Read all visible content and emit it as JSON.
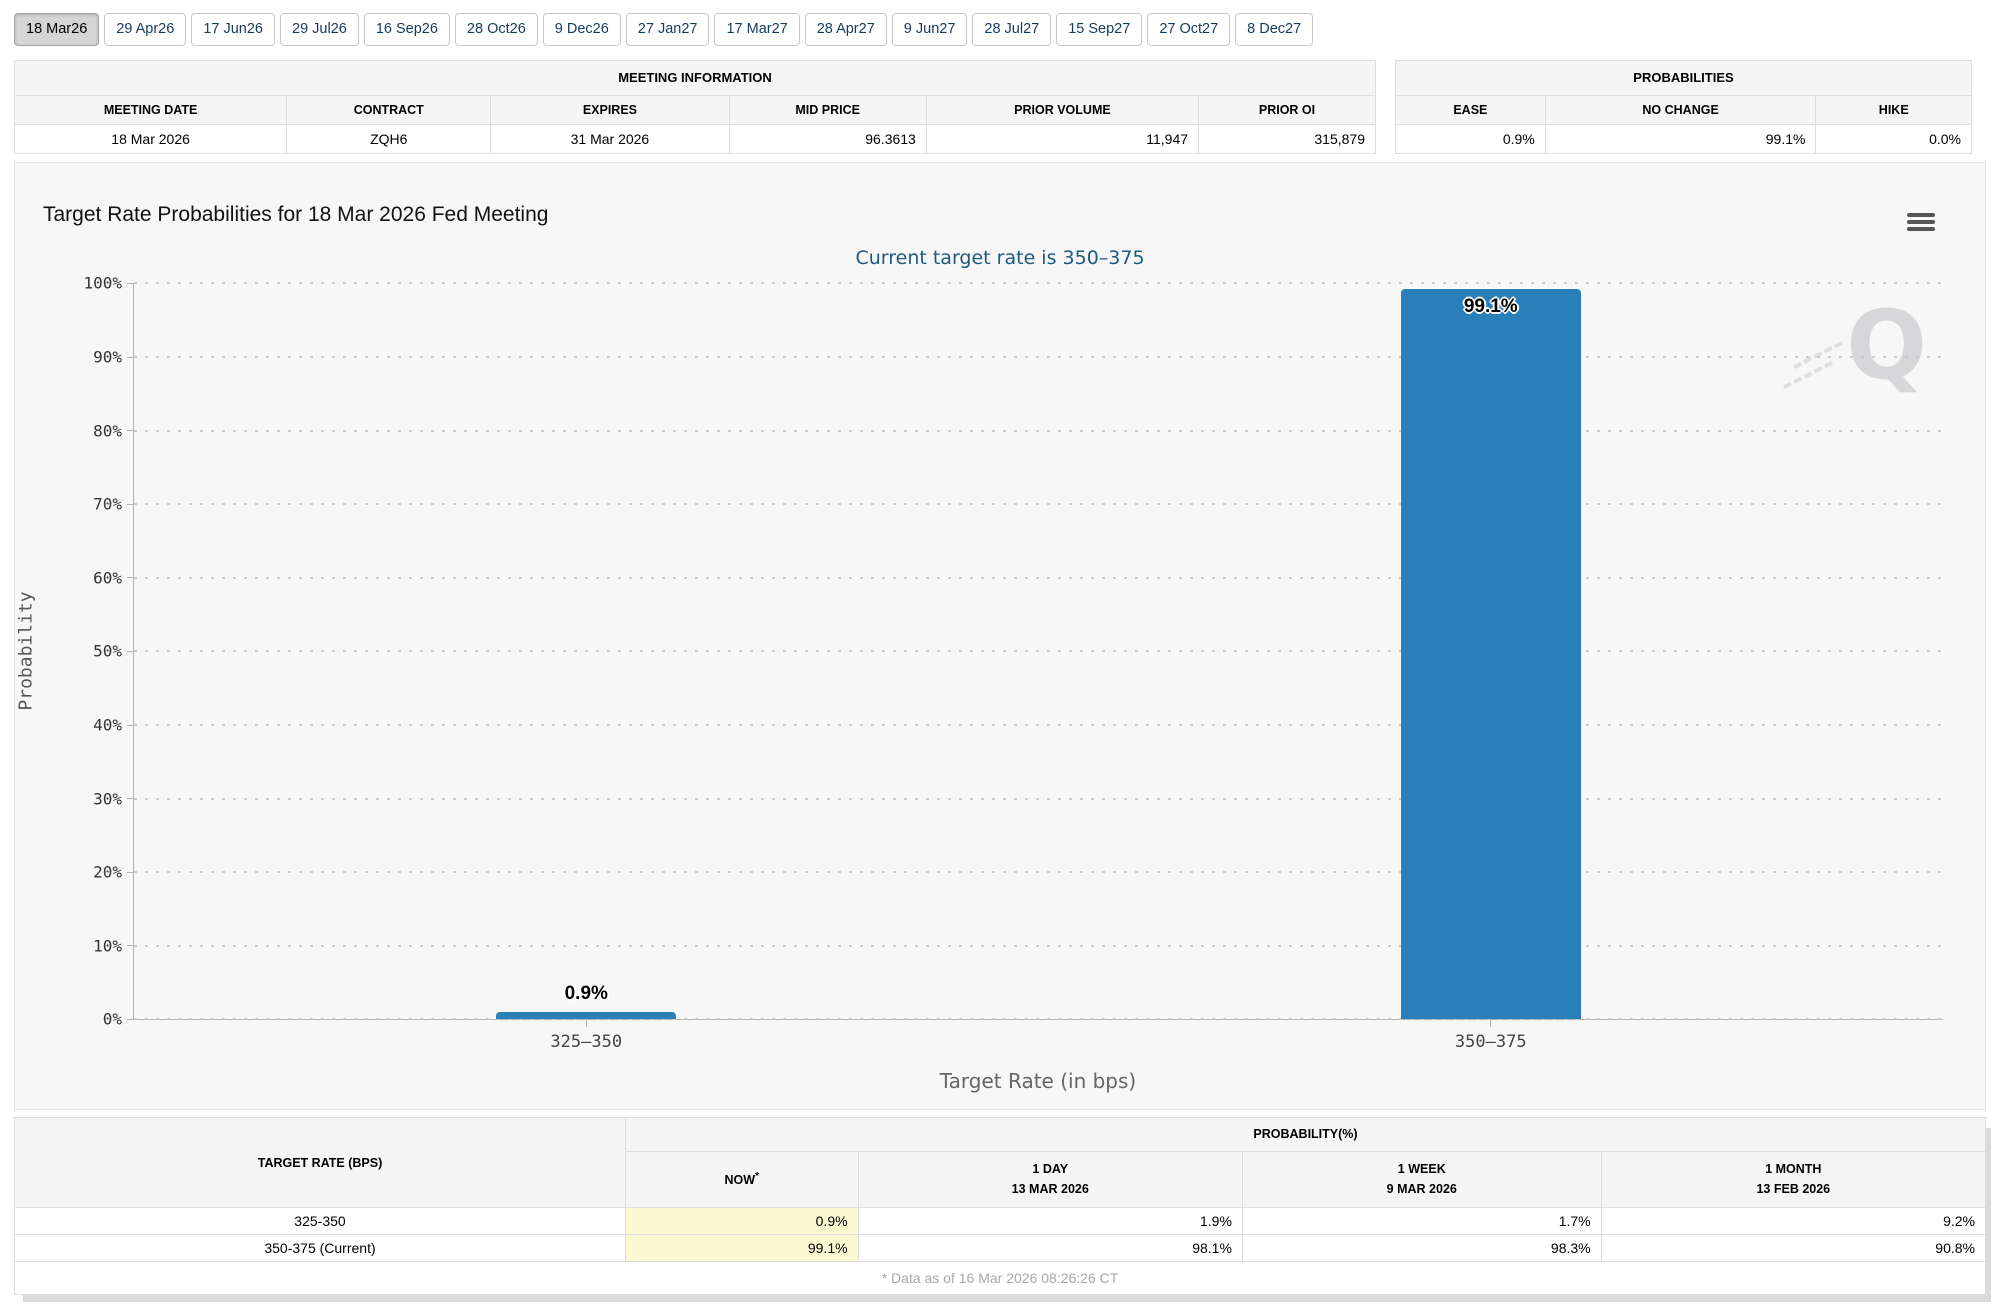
{
  "colors": {
    "bar": "#2980b9",
    "selected_tab_bg": "#d5d5d5",
    "tab_text": "#16395e",
    "subtitle_text": "#1d5a80",
    "now_highlight": "#fafad2",
    "panel_bg": "#f7f7f7"
  },
  "tabs": [
    {
      "label": "18 Mar26",
      "selected": true
    },
    {
      "label": "29 Apr26",
      "selected": false
    },
    {
      "label": "17 Jun26",
      "selected": false
    },
    {
      "label": "29 Jul26",
      "selected": false
    },
    {
      "label": "16 Sep26",
      "selected": false
    },
    {
      "label": "28 Oct26",
      "selected": false
    },
    {
      "label": "9 Dec26",
      "selected": false
    },
    {
      "label": "27 Jan27",
      "selected": false
    },
    {
      "label": "17 Mar27",
      "selected": false
    },
    {
      "label": "28 Apr27",
      "selected": false
    },
    {
      "label": "9 Jun27",
      "selected": false
    },
    {
      "label": "28 Jul27",
      "selected": false
    },
    {
      "label": "15 Sep27",
      "selected": false
    },
    {
      "label": "27 Oct27",
      "selected": false
    },
    {
      "label": "8 Dec27",
      "selected": false
    }
  ],
  "meeting_info": {
    "title": "MEETING INFORMATION",
    "headers": [
      "MEETING DATE",
      "CONTRACT",
      "EXPIRES",
      "MID PRICE",
      "PRIOR VOLUME",
      "PRIOR OI"
    ],
    "values": [
      "18 Mar 2026",
      "ZQH6",
      "31 Mar 2026",
      "96.3613",
      "11,947",
      "315,879"
    ]
  },
  "probabilities": {
    "title": "PROBABILITIES",
    "headers": [
      "EASE",
      "NO CHANGE",
      "HIKE"
    ],
    "values": [
      "0.9%",
      "99.1%",
      "0.0%"
    ]
  },
  "chart": {
    "title": "Target Rate Probabilities for 18 Mar 2026 Fed Meeting",
    "subtitle": "Current target rate is 350–375",
    "watermark": "Q",
    "menu_icon": "hamburger-icon"
  },
  "chart_data": {
    "type": "bar",
    "title": "Target Rate Probabilities for 18 Mar 2026 Fed Meeting",
    "subtitle": "Current target rate is 350–375",
    "categories": [
      "325–350",
      "350–375"
    ],
    "values": [
      0.9,
      99.1
    ],
    "bar_labels": [
      "0.9%",
      "99.1%"
    ],
    "xlabel": "Target Rate (in bps)",
    "ylabel": "Probability",
    "ylim": [
      0,
      100
    ],
    "ytick_step": 10,
    "ytick_suffix": "%",
    "grid": "dotted-horizontal",
    "legend": "none",
    "bar_color": "#2980b9"
  },
  "history_table": {
    "rate_header": "TARGET RATE (BPS)",
    "group_header": "PROBABILITY(%)",
    "col_now": {
      "label": "NOW",
      "sup": "*"
    },
    "col_day": {
      "label": "1 DAY",
      "date": "13 MAR 2026"
    },
    "col_week": {
      "label": "1 WEEK",
      "date": "9 MAR 2026"
    },
    "col_month": {
      "label": "1 MONTH",
      "date": "13 FEB 2026"
    },
    "rows": [
      {
        "rate": "325-350",
        "now": "0.9%",
        "day": "1.9%",
        "week": "1.7%",
        "month": "9.2%"
      },
      {
        "rate": "350-375 (Current)",
        "now": "99.1%",
        "day": "98.1%",
        "week": "98.3%",
        "month": "90.8%"
      }
    ],
    "footnote": "* Data as of 16 Mar 2026 08:26:26 CT"
  }
}
